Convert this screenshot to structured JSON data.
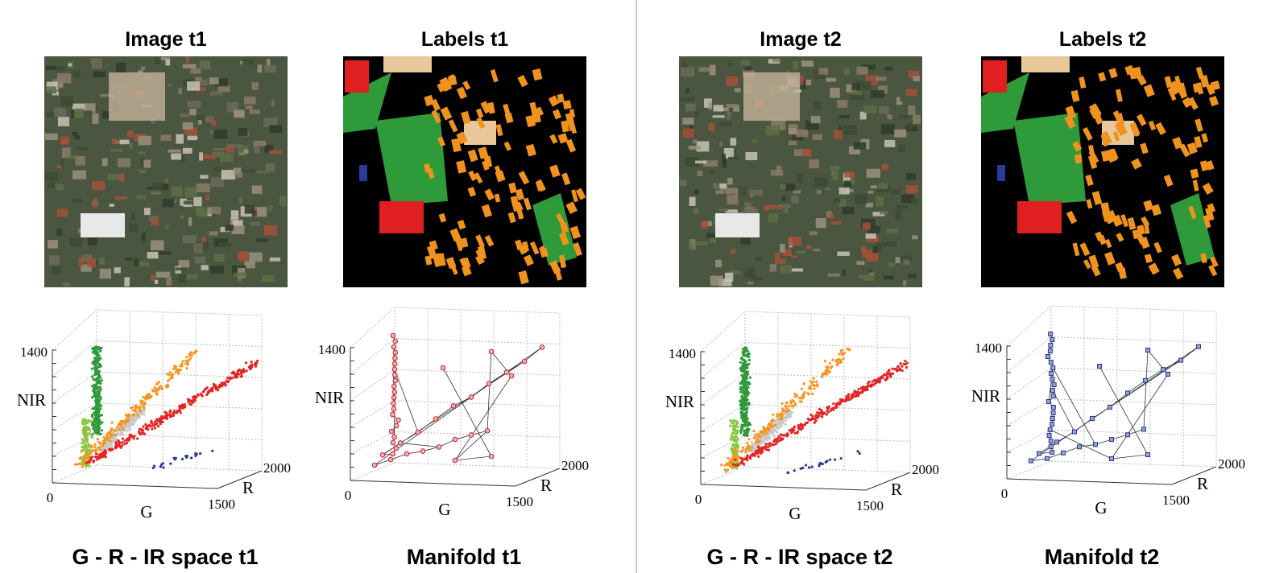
{
  "columns": [
    {
      "title": "Image t1",
      "caption": "G - R - IR space  t1",
      "axes": {
        "z_tick": 1400,
        "z_label": "NIR",
        "x_start": 0,
        "x_label": "G",
        "x_end": 1500,
        "y_label": "R",
        "y_end": 2000
      }
    },
    {
      "title": "Labels t1",
      "caption": "Manifold t1",
      "axes": {
        "z_tick": 1400,
        "z_label": "NIR",
        "x_start": 0,
        "x_label": "G",
        "x_end": 1500,
        "y_label": "R",
        "y_end": 2000
      }
    },
    {
      "title": "Image t2",
      "caption": "G - R - IR space  t2",
      "axes": {
        "z_tick": 1400,
        "z_label": "NIR",
        "x_start": 0,
        "x_label": "G",
        "x_end": 1500,
        "y_label": "R",
        "y_end": 2000
      }
    },
    {
      "title": "Labels t2",
      "caption": "Manifold t2",
      "axes": {
        "z_tick": 1400,
        "z_label": "NIR",
        "x_start": 0,
        "x_label": "G",
        "x_end": 1500,
        "y_label": "R",
        "y_end": 2000
      }
    }
  ]
}
